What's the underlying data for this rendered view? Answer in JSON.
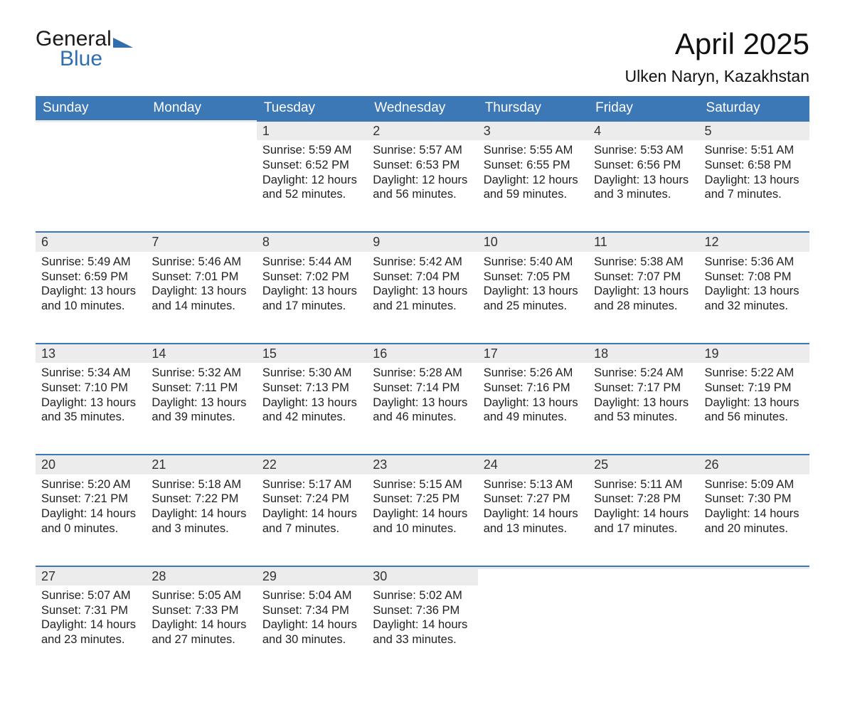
{
  "logo": {
    "word1": "General",
    "word2": "Blue"
  },
  "title": "April 2025",
  "location": "Ulken Naryn, Kazakhstan",
  "colors": {
    "header_bg": "#3d78b6",
    "header_text": "#ffffff",
    "daynum_bg": "#ececec",
    "daynum_border": "#3d78b6",
    "body_text": "#222222",
    "page_bg": "#ffffff",
    "logo_blue": "#2f6fb0"
  },
  "columns": [
    "Sunday",
    "Monday",
    "Tuesday",
    "Wednesday",
    "Thursday",
    "Friday",
    "Saturday"
  ],
  "weeks": [
    [
      null,
      null,
      {
        "n": "1",
        "sr": "5:59 AM",
        "ss": "6:52 PM",
        "dl": "12 hours and 52 minutes."
      },
      {
        "n": "2",
        "sr": "5:57 AM",
        "ss": "6:53 PM",
        "dl": "12 hours and 56 minutes."
      },
      {
        "n": "3",
        "sr": "5:55 AM",
        "ss": "6:55 PM",
        "dl": "12 hours and 59 minutes."
      },
      {
        "n": "4",
        "sr": "5:53 AM",
        "ss": "6:56 PM",
        "dl": "13 hours and 3 minutes."
      },
      {
        "n": "5",
        "sr": "5:51 AM",
        "ss": "6:58 PM",
        "dl": "13 hours and 7 minutes."
      }
    ],
    [
      {
        "n": "6",
        "sr": "5:49 AM",
        "ss": "6:59 PM",
        "dl": "13 hours and 10 minutes."
      },
      {
        "n": "7",
        "sr": "5:46 AM",
        "ss": "7:01 PM",
        "dl": "13 hours and 14 minutes."
      },
      {
        "n": "8",
        "sr": "5:44 AM",
        "ss": "7:02 PM",
        "dl": "13 hours and 17 minutes."
      },
      {
        "n": "9",
        "sr": "5:42 AM",
        "ss": "7:04 PM",
        "dl": "13 hours and 21 minutes."
      },
      {
        "n": "10",
        "sr": "5:40 AM",
        "ss": "7:05 PM",
        "dl": "13 hours and 25 minutes."
      },
      {
        "n": "11",
        "sr": "5:38 AM",
        "ss": "7:07 PM",
        "dl": "13 hours and 28 minutes."
      },
      {
        "n": "12",
        "sr": "5:36 AM",
        "ss": "7:08 PM",
        "dl": "13 hours and 32 minutes."
      }
    ],
    [
      {
        "n": "13",
        "sr": "5:34 AM",
        "ss": "7:10 PM",
        "dl": "13 hours and 35 minutes."
      },
      {
        "n": "14",
        "sr": "5:32 AM",
        "ss": "7:11 PM",
        "dl": "13 hours and 39 minutes."
      },
      {
        "n": "15",
        "sr": "5:30 AM",
        "ss": "7:13 PM",
        "dl": "13 hours and 42 minutes."
      },
      {
        "n": "16",
        "sr": "5:28 AM",
        "ss": "7:14 PM",
        "dl": "13 hours and 46 minutes."
      },
      {
        "n": "17",
        "sr": "5:26 AM",
        "ss": "7:16 PM",
        "dl": "13 hours and 49 minutes."
      },
      {
        "n": "18",
        "sr": "5:24 AM",
        "ss": "7:17 PM",
        "dl": "13 hours and 53 minutes."
      },
      {
        "n": "19",
        "sr": "5:22 AM",
        "ss": "7:19 PM",
        "dl": "13 hours and 56 minutes."
      }
    ],
    [
      {
        "n": "20",
        "sr": "5:20 AM",
        "ss": "7:21 PM",
        "dl": "14 hours and 0 minutes."
      },
      {
        "n": "21",
        "sr": "5:18 AM",
        "ss": "7:22 PM",
        "dl": "14 hours and 3 minutes."
      },
      {
        "n": "22",
        "sr": "5:17 AM",
        "ss": "7:24 PM",
        "dl": "14 hours and 7 minutes."
      },
      {
        "n": "23",
        "sr": "5:15 AM",
        "ss": "7:25 PM",
        "dl": "14 hours and 10 minutes."
      },
      {
        "n": "24",
        "sr": "5:13 AM",
        "ss": "7:27 PM",
        "dl": "14 hours and 13 minutes."
      },
      {
        "n": "25",
        "sr": "5:11 AM",
        "ss": "7:28 PM",
        "dl": "14 hours and 17 minutes."
      },
      {
        "n": "26",
        "sr": "5:09 AM",
        "ss": "7:30 PM",
        "dl": "14 hours and 20 minutes."
      }
    ],
    [
      {
        "n": "27",
        "sr": "5:07 AM",
        "ss": "7:31 PM",
        "dl": "14 hours and 23 minutes."
      },
      {
        "n": "28",
        "sr": "5:05 AM",
        "ss": "7:33 PM",
        "dl": "14 hours and 27 minutes."
      },
      {
        "n": "29",
        "sr": "5:04 AM",
        "ss": "7:34 PM",
        "dl": "14 hours and 30 minutes."
      },
      {
        "n": "30",
        "sr": "5:02 AM",
        "ss": "7:36 PM",
        "dl": "14 hours and 33 minutes."
      },
      null,
      null,
      null
    ]
  ],
  "labels": {
    "sunrise": "Sunrise: ",
    "sunset": "Sunset: ",
    "daylight": "Daylight: "
  }
}
